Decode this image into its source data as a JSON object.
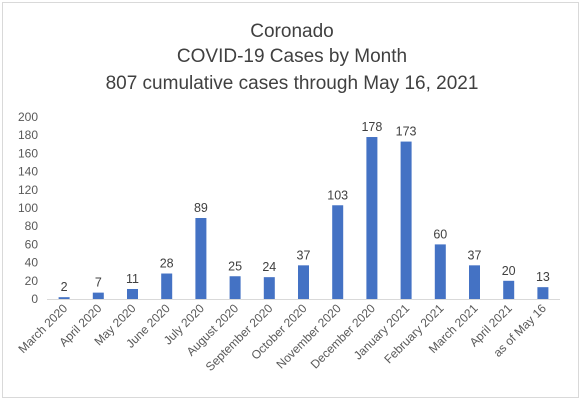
{
  "chart_data": {
    "type": "bar",
    "title": "Coronado",
    "subtitle": "COVID-19 Cases by Month",
    "subtitle2": "807 cumulative cases through May 16, 2021",
    "xlabel": "",
    "ylabel": "",
    "ylim": [
      0,
      200
    ],
    "yticks": [
      0,
      20,
      40,
      60,
      80,
      100,
      120,
      140,
      160,
      180,
      200
    ],
    "grid": false,
    "bar_color": "#4472c4",
    "categories": [
      "March 2020",
      "April 2020",
      "May 2020",
      "June 2020",
      "July 2020",
      "August 2020",
      "September 2020",
      "October 2020",
      "November 2020",
      "December 2020",
      "January 2021",
      "February 2021",
      "March 2021",
      "April 2021",
      "as of May 16"
    ],
    "values": [
      2,
      7,
      11,
      28,
      89,
      25,
      24,
      37,
      103,
      178,
      173,
      60,
      37,
      20,
      13
    ]
  }
}
